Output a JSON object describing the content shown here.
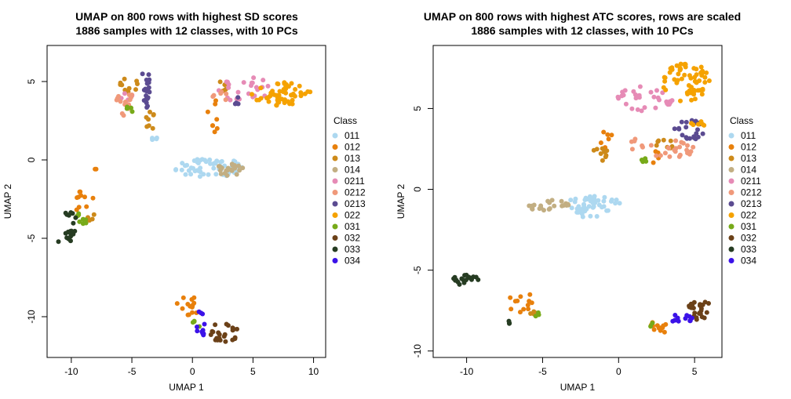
{
  "chart_data": [
    {
      "type": "scatter",
      "title": "UMAP on 800 rows with highest SD scores",
      "subtitle": "1886 samples with 12 classes, with 10 PCs",
      "xlabel": "UMAP 1",
      "ylabel": "UMAP 2",
      "xlim": [
        -12,
        11
      ],
      "ylim": [
        -12.6,
        7.3
      ],
      "xticks": [
        -10,
        -5,
        0,
        5,
        10
      ],
      "yticks": [
        -10,
        -5,
        0,
        5
      ],
      "legend_title": "Class",
      "legend_position": "right",
      "series": [
        {
          "name": "011",
          "color": "#ADD8F0",
          "clusters": [
            {
              "cx": 1.5,
              "cy": -0.5,
              "rx": 3.0,
              "ry": 0.6,
              "n": 55
            },
            {
              "cx": -3.2,
              "cy": 1.3,
              "rx": 0.3,
              "ry": 0.3,
              "n": 4
            }
          ]
        },
        {
          "name": "012",
          "color": "#E8800C",
          "clusters": [
            {
              "cx": -9.0,
              "cy": -2.7,
              "rx": 1.0,
              "ry": 0.7,
              "n": 10
            },
            {
              "cx": -0.5,
              "cy": -9.4,
              "rx": 1.0,
              "ry": 0.8,
              "n": 14
            },
            {
              "cx": 1.8,
              "cy": 2.8,
              "rx": 0.7,
              "ry": 1.3,
              "n": 8
            },
            {
              "cx": -8.0,
              "cy": -0.5,
              "rx": 0.2,
              "ry": 0.3,
              "n": 2
            }
          ]
        },
        {
          "name": "013",
          "color": "#CD8A1A",
          "clusters": [
            {
              "cx": -5.2,
              "cy": 4.8,
              "rx": 0.8,
              "ry": 0.5,
              "n": 10
            },
            {
              "cx": -3.5,
              "cy": 2.3,
              "rx": 0.5,
              "ry": 0.8,
              "n": 8
            },
            {
              "cx": 2.5,
              "cy": 4.8,
              "rx": 0.8,
              "ry": 0.5,
              "n": 6
            },
            {
              "cx": -8.3,
              "cy": -3.7,
              "rx": 0.4,
              "ry": 0.3,
              "n": 4
            }
          ]
        },
        {
          "name": "014",
          "color": "#C2AE82",
          "clusters": [
            {
              "cx": 3.0,
              "cy": -0.6,
              "rx": 1.2,
              "ry": 0.4,
              "n": 22
            }
          ]
        },
        {
          "name": "0211",
          "color": "#E68BB6",
          "clusters": [
            {
              "cx": 4.5,
              "cy": 4.4,
              "rx": 2.5,
              "ry": 0.9,
              "n": 24
            },
            {
              "cx": -5.4,
              "cy": 4.0,
              "rx": 0.5,
              "ry": 0.5,
              "n": 5
            }
          ]
        },
        {
          "name": "0212",
          "color": "#F0997A",
          "clusters": [
            {
              "cx": -5.6,
              "cy": 3.7,
              "rx": 0.7,
              "ry": 0.9,
              "n": 16
            },
            {
              "cx": 2.4,
              "cy": 4.1,
              "rx": 0.8,
              "ry": 0.5,
              "n": 6
            }
          ]
        },
        {
          "name": "0213",
          "color": "#5B4B91",
          "clusters": [
            {
              "cx": -3.8,
              "cy": 4.6,
              "rx": 0.4,
              "ry": 1.5,
              "n": 22
            },
            {
              "cx": 3.8,
              "cy": 3.7,
              "rx": 0.6,
              "ry": 0.5,
              "n": 4
            }
          ]
        },
        {
          "name": "022",
          "color": "#F5A200",
          "clusters": [
            {
              "cx": 7.3,
              "cy": 4.2,
              "rx": 2.5,
              "ry": 0.8,
              "n": 55
            }
          ]
        },
        {
          "name": "031",
          "color": "#77AA19",
          "clusters": [
            {
              "cx": -9.0,
              "cy": -3.7,
              "rx": 0.6,
              "ry": 0.4,
              "n": 10
            },
            {
              "cx": -5.0,
              "cy": 3.2,
              "rx": 0.5,
              "ry": 0.3,
              "n": 4
            },
            {
              "cx": 0.3,
              "cy": -10.5,
              "rx": 0.3,
              "ry": 0.3,
              "n": 4
            }
          ]
        },
        {
          "name": "032",
          "color": "#6B4118",
          "clusters": [
            {
              "cx": 2.6,
              "cy": -11.0,
              "rx": 1.3,
              "ry": 0.6,
              "n": 24
            }
          ]
        },
        {
          "name": "033",
          "color": "#263C22",
          "clusters": [
            {
              "cx": -10.1,
              "cy": -4.0,
              "rx": 0.5,
              "ry": 1.2,
              "n": 18
            },
            {
              "cx": -11.0,
              "cy": -5.2,
              "rx": 0.1,
              "ry": 0.1,
              "n": 1
            }
          ]
        },
        {
          "name": "034",
          "color": "#3B12E8",
          "clusters": [
            {
              "cx": 0.8,
              "cy": -10.8,
              "rx": 0.5,
              "ry": 0.4,
              "n": 8
            },
            {
              "cx": 0.7,
              "cy": -9.7,
              "rx": 0.2,
              "ry": 0.2,
              "n": 3
            }
          ]
        }
      ]
    },
    {
      "type": "scatter",
      "title": "UMAP on 800 rows with highest ATC scores, rows are scaled",
      "subtitle": "1886 samples with 12 classes, with 10 PCs",
      "xlabel": "UMAP 1",
      "ylabel": "UMAP 2",
      "xlim": [
        -12.2,
        6.8
      ],
      "ylim": [
        -10.4,
        8.9
      ],
      "xticks": [
        -10,
        -5,
        0,
        5
      ],
      "yticks": [
        -10,
        -5,
        0,
        5
      ],
      "legend_title": "Class",
      "legend_position": "right",
      "series": [
        {
          "name": "011",
          "color": "#ADD8F0",
          "clusters": [
            {
              "cx": -1.7,
              "cy": -0.9,
              "rx": 1.8,
              "ry": 0.5,
              "n": 40
            },
            {
              "cx": -2.2,
              "cy": -1.5,
              "rx": 1.0,
              "ry": 0.3,
              "n": 10
            }
          ]
        },
        {
          "name": "012",
          "color": "#E8800C",
          "clusters": [
            {
              "cx": 2.5,
              "cy": -8.6,
              "rx": 0.8,
              "ry": 0.4,
              "n": 12
            },
            {
              "cx": -6.5,
              "cy": -7.0,
              "rx": 1.0,
              "ry": 0.7,
              "n": 12
            },
            {
              "cx": -0.8,
              "cy": 3.1,
              "rx": 0.5,
              "ry": 0.6,
              "n": 6
            },
            {
              "cx": 2.6,
              "cy": 1.8,
              "rx": 0.5,
              "ry": 0.6,
              "n": 5
            }
          ]
        },
        {
          "name": "013",
          "color": "#CD8A1A",
          "clusters": [
            {
              "cx": -1.2,
              "cy": 2.2,
              "rx": 0.5,
              "ry": 0.6,
              "n": 10
            },
            {
              "cx": 3.1,
              "cy": 3.0,
              "rx": 0.7,
              "ry": 0.6,
              "n": 8
            },
            {
              "cx": -5.5,
              "cy": -7.7,
              "rx": 0.3,
              "ry": 0.3,
              "n": 4
            }
          ]
        },
        {
          "name": "014",
          "color": "#C2AE82",
          "clusters": [
            {
              "cx": -4.6,
              "cy": -1.0,
              "rx": 1.4,
              "ry": 0.4,
              "n": 24
            }
          ]
        },
        {
          "name": "0211",
          "color": "#E68BB6",
          "clusters": [
            {
              "cx": 1.8,
              "cy": 5.6,
              "rx": 1.8,
              "ry": 0.8,
              "n": 26
            },
            {
              "cx": 0.2,
              "cy": 5.8,
              "rx": 0.5,
              "ry": 0.4,
              "n": 5
            }
          ]
        },
        {
          "name": "0212",
          "color": "#F0997A",
          "clusters": [
            {
              "cx": 3.6,
              "cy": 2.5,
              "rx": 1.6,
              "ry": 0.6,
              "n": 22
            },
            {
              "cx": 1.2,
              "cy": 2.9,
              "rx": 0.6,
              "ry": 0.5,
              "n": 6
            }
          ]
        },
        {
          "name": "0213",
          "color": "#5B4B91",
          "clusters": [
            {
              "cx": 4.6,
              "cy": 3.6,
              "rx": 1.0,
              "ry": 0.8,
              "n": 22
            }
          ]
        },
        {
          "name": "022",
          "color": "#F5A200",
          "clusters": [
            {
              "cx": 4.5,
              "cy": 6.6,
              "rx": 1.6,
              "ry": 1.2,
              "n": 60
            },
            {
              "cx": 5.2,
              "cy": 4.2,
              "rx": 0.5,
              "ry": 0.5,
              "n": 6
            }
          ]
        },
        {
          "name": "031",
          "color": "#77AA19",
          "clusters": [
            {
              "cx": 1.6,
              "cy": 1.8,
              "rx": 0.3,
              "ry": 0.2,
              "n": 4
            },
            {
              "cx": -5.3,
              "cy": -7.8,
              "rx": 0.2,
              "ry": 0.2,
              "n": 3
            },
            {
              "cx": 2.1,
              "cy": -8.3,
              "rx": 0.2,
              "ry": 0.2,
              "n": 2
            }
          ]
        },
        {
          "name": "032",
          "color": "#6B4118",
          "clusters": [
            {
              "cx": 5.4,
              "cy": -7.5,
              "rx": 0.9,
              "ry": 0.6,
              "n": 24
            }
          ]
        },
        {
          "name": "033",
          "color": "#263C22",
          "clusters": [
            {
              "cx": -10.2,
              "cy": -5.6,
              "rx": 1.2,
              "ry": 0.3,
              "n": 20
            },
            {
              "cx": -7.2,
              "cy": -8.3,
              "rx": 0.1,
              "ry": 0.3,
              "n": 3
            }
          ]
        },
        {
          "name": "034",
          "color": "#3B12E8",
          "clusters": [
            {
              "cx": 4.2,
              "cy": -8.0,
              "rx": 0.8,
              "ry": 0.3,
              "n": 12
            }
          ]
        }
      ]
    }
  ]
}
